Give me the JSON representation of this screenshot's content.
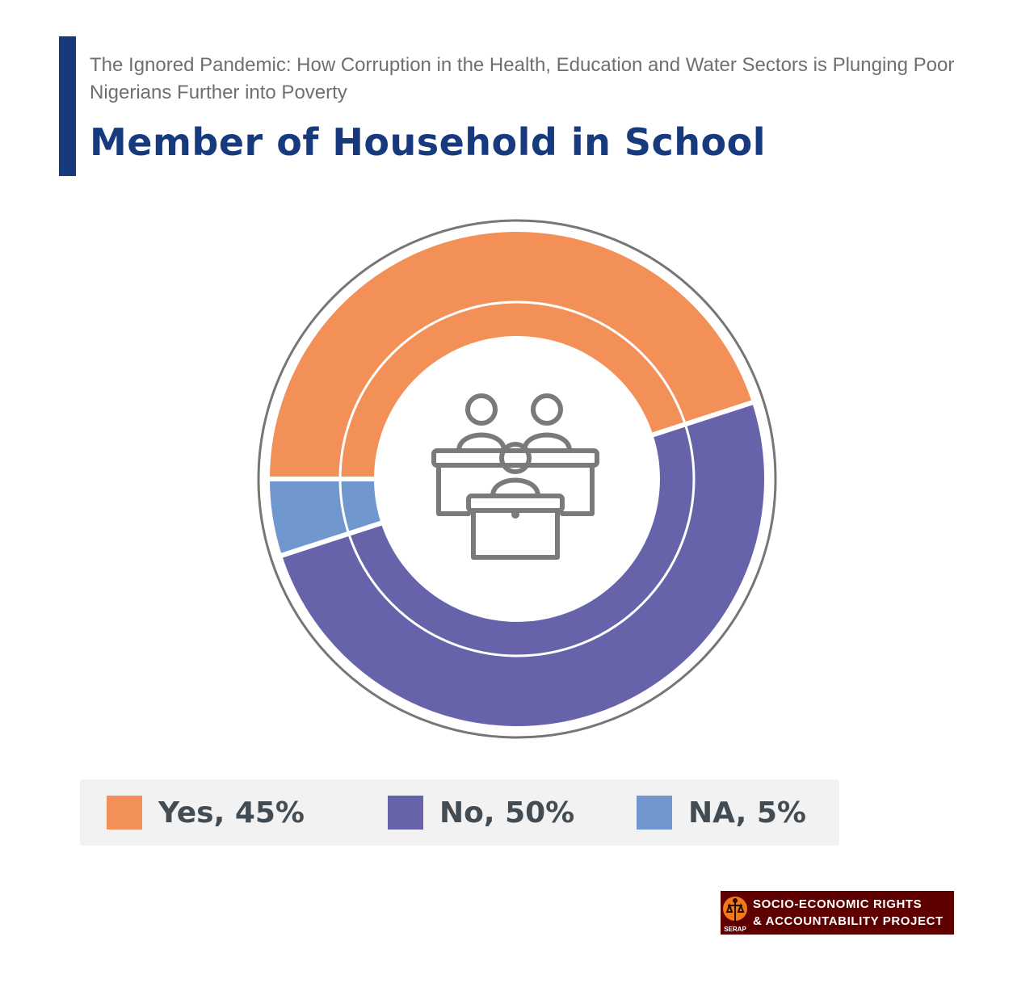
{
  "header": {
    "subtitle": "The Ignored Pandemic: How Corruption in the Health, Education and Water Sectors is Plunging Poor Nigerians Further into Poverty",
    "title": "Member of Household in School",
    "accent_color": "#173a7f"
  },
  "chart_data": {
    "type": "pie",
    "style": "double-ring donut with classroom icon in the center",
    "categories": [
      "Yes",
      "No",
      "NA"
    ],
    "values": [
      45,
      50,
      5
    ],
    "unit": "%",
    "colors": [
      "#f29057",
      "#6763aa",
      "#7197cf"
    ],
    "legend_position": "bottom",
    "center_icon": "classroom-icon"
  },
  "legend": {
    "items": [
      {
        "label": "Yes, 45%",
        "color": "#f29057"
      },
      {
        "label": "No, 50%",
        "color": "#6763aa"
      },
      {
        "label": "NA, 5%",
        "color": "#7197cf"
      }
    ]
  },
  "logo": {
    "line1": "SOCIO-ECONOMIC RIGHTS",
    "line2": "& ACCOUNTABILITY PROJECT",
    "mark_text": "SERAP",
    "background": "#5e0000"
  }
}
